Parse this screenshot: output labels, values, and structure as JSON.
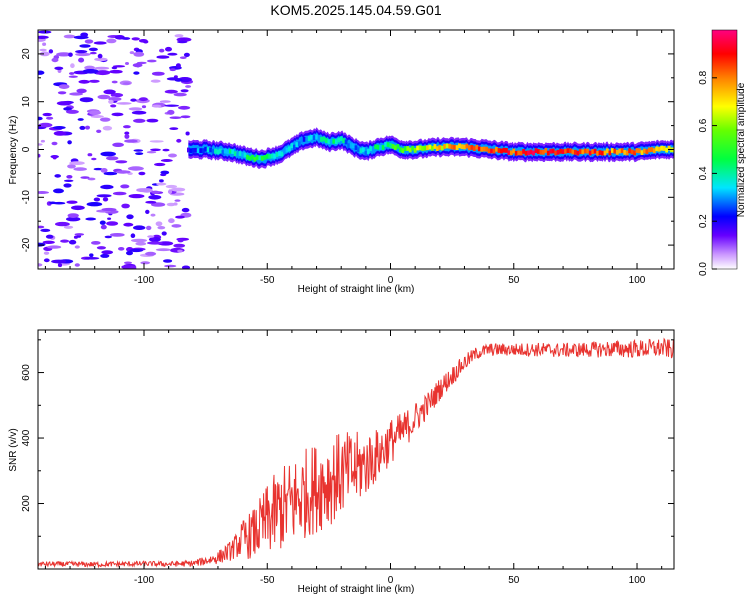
{
  "title": "KOM5.2025.145.04.59.G01",
  "chart_data": [
    {
      "type": "heatmap",
      "xlabel": "Height of straight line (km)",
      "ylabel": "Frequency (Hz)",
      "xlim": [
        -143,
        115
      ],
      "ylim": [
        -25,
        25
      ],
      "xticks": [
        -100,
        -50,
        0,
        50,
        100
      ],
      "yticks": [
        -20,
        -10,
        0,
        10,
        20
      ],
      "colorbar": {
        "label": "Normalized spectral amplitude",
        "range": [
          0,
          1
        ],
        "ticks": [
          0.0,
          0.2,
          0.4,
          0.6,
          0.8
        ],
        "colormap": "rainbow (white-violet-blue-cyan-green-yellow-red-magenta)"
      },
      "signal_track": {
        "description": "frequency of the dominant signal line",
        "x": [
          -82,
          -75,
          -65,
          -58,
          -52,
          -45,
          -40,
          -35,
          -30,
          -25,
          -20,
          -15,
          -10,
          -5,
          0,
          5,
          10,
          20,
          30,
          40,
          50,
          60,
          70,
          80,
          90,
          100,
          110,
          115
        ],
        "y": [
          0,
          0,
          -0.5,
          -1.5,
          -2.0,
          -1.0,
          0.5,
          2.0,
          2.5,
          1.5,
          2.0,
          0.5,
          -0.5,
          0.5,
          1.0,
          0,
          0,
          0.5,
          0.5,
          0,
          -0.5,
          -0.5,
          -0.5,
          -0.5,
          -0.5,
          -0.5,
          0,
          0
        ],
        "amplitude": [
          0.2,
          0.3,
          0.35,
          0.4,
          0.45,
          0.4,
          0.35,
          0.3,
          0.35,
          0.4,
          0.35,
          0.3,
          0.35,
          0.4,
          0.45,
          0.55,
          0.6,
          0.7,
          0.8,
          0.85,
          0.85,
          0.9,
          0.85,
          0.85,
          0.8,
          0.8,
          0.75,
          0.7
        ]
      },
      "noise_region": {
        "description": "scattered low-amplitude noise",
        "xlim": [
          -143,
          -82
        ],
        "ylim": [
          -25,
          25
        ],
        "amplitude_range": [
          0.0,
          0.15
        ]
      }
    },
    {
      "type": "line",
      "xlabel": "Height of straight line (km)",
      "ylabel": "SNR (v/v)",
      "xlim": [
        -143,
        115
      ],
      "ylim": [
        0,
        730
      ],
      "xticks": [
        -100,
        -50,
        0,
        50,
        100
      ],
      "yticks": [
        200,
        400,
        600
      ],
      "series": [
        {
          "color": "#e8332f",
          "x": [
            -143,
            -130,
            -120,
            -110,
            -100,
            -90,
            -80,
            -75,
            -70,
            -65,
            -62,
            -60,
            -55,
            -50,
            -45,
            -40,
            -35,
            -30,
            -25,
            -20,
            -15,
            -10,
            -5,
            0,
            5,
            10,
            15,
            20,
            25,
            30,
            35,
            40,
            50,
            60,
            70,
            80,
            90,
            100,
            110,
            115
          ],
          "y": [
            15,
            15,
            14,
            15,
            16,
            15,
            17,
            25,
            35,
            55,
            75,
            90,
            110,
            150,
            180,
            200,
            230,
            250,
            270,
            290,
            300,
            320,
            350,
            390,
            420,
            460,
            500,
            550,
            590,
            630,
            660,
            670,
            670,
            670,
            668,
            670,
            672,
            672,
            675,
            670
          ],
          "noise_amplitude": [
            8,
            8,
            8,
            8,
            8,
            8,
            10,
            14,
            20,
            30,
            40,
            60,
            80,
            110,
            130,
            140,
            140,
            140,
            140,
            130,
            120,
            100,
            80,
            70,
            60,
            50,
            40,
            35,
            30,
            25,
            20,
            20,
            20,
            22,
            22,
            24,
            26,
            28,
            30,
            30
          ]
        }
      ]
    }
  ]
}
